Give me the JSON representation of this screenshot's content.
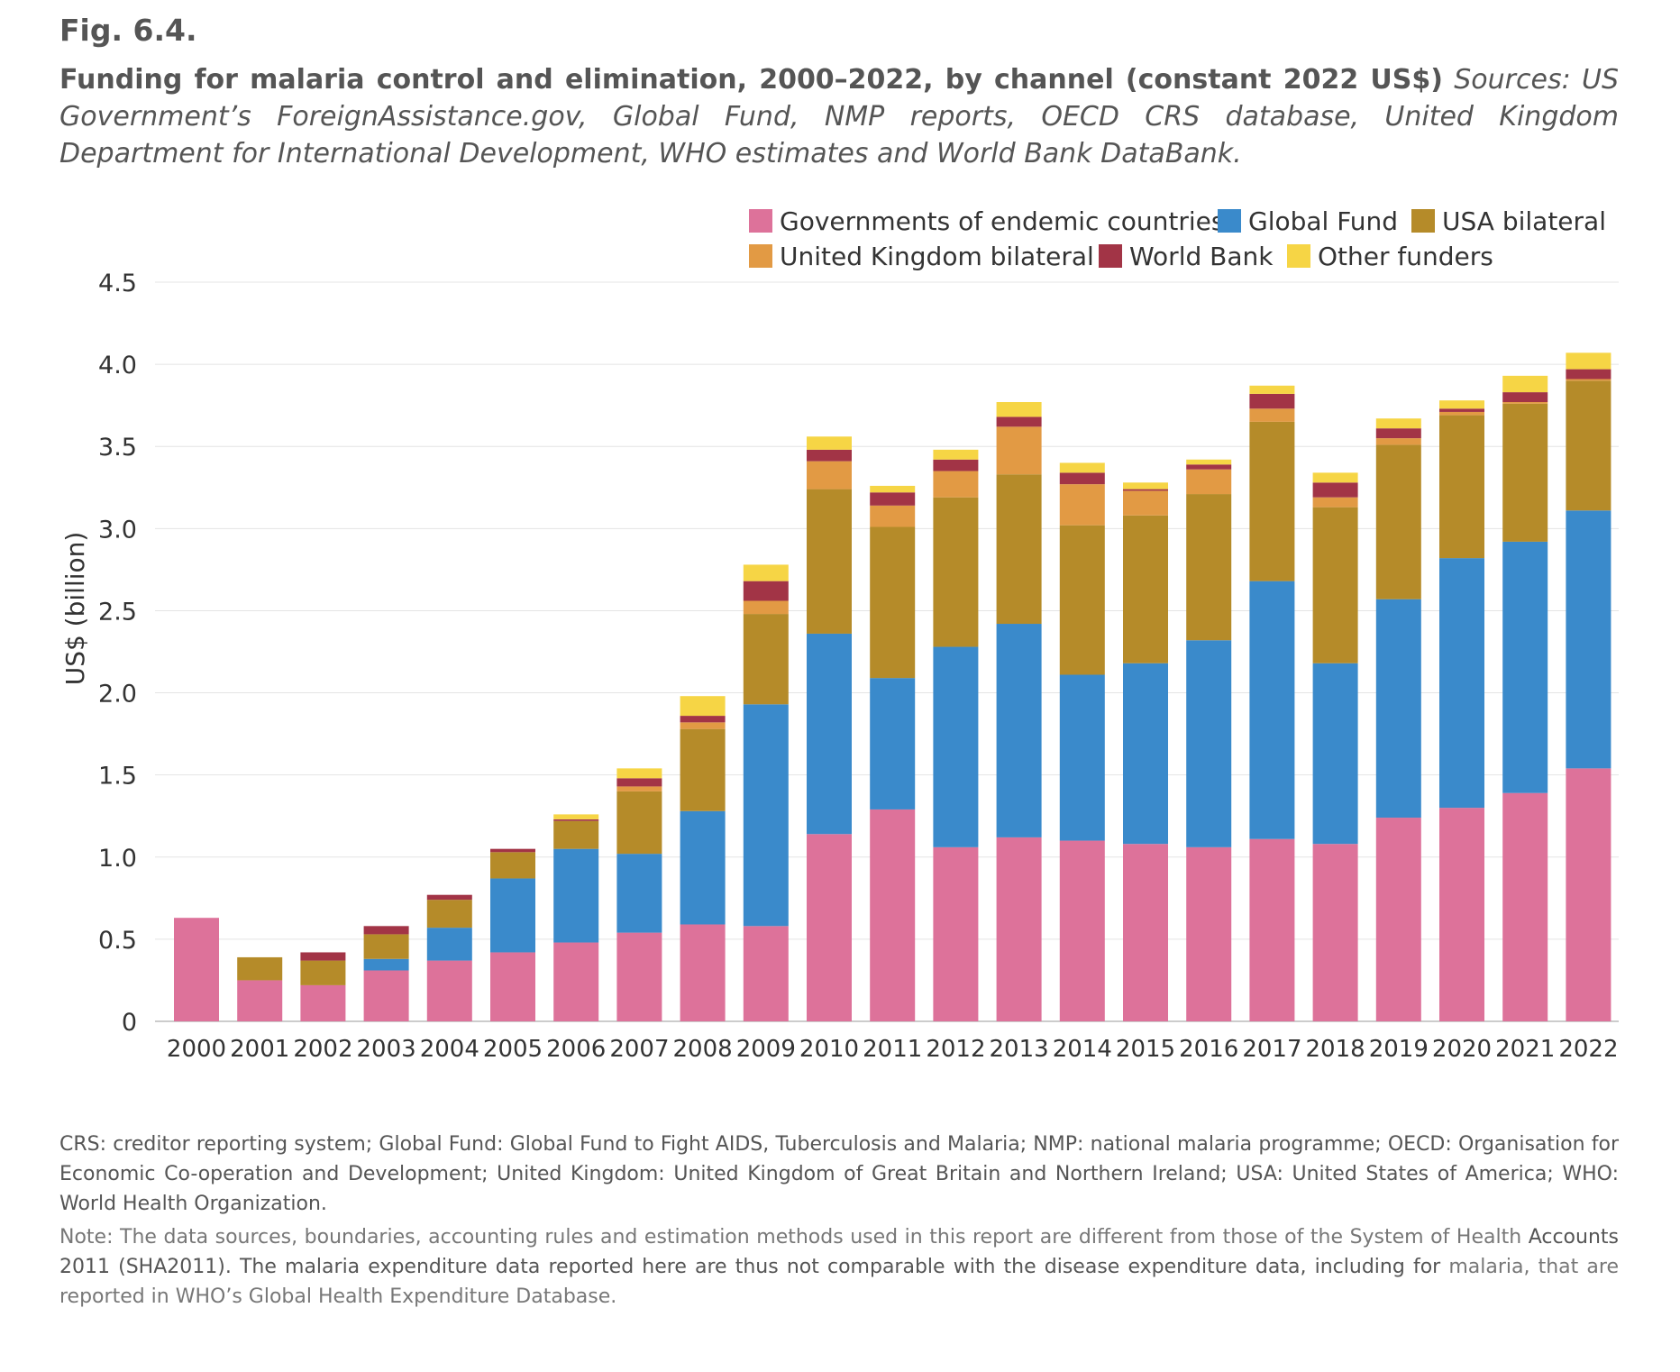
{
  "figure_label": "Fig. 6.4.",
  "caption": {
    "title": "Funding for malaria control and elimination, 2000–2022, by channel (constant 2022 US$)",
    "sources": "Sources: US Government’s ForeignAssistance.gov, Global Fund, NMP reports, OECD CRS database, United Kingdom Department for International Development, WHO estimates and World Bank DataBank."
  },
  "notes": {
    "abbreviations": "CRS: creditor reporting system; Global Fund: Global Fund to Fight AIDS, Tuberculosis and Malaria; NMP: national malaria programme; OECD: Organisation for Economic Co-operation and Development; United Kingdom: United Kingdom of Great Britain and Northern Ireland; USA: United States of America; WHO: World Health Organization.",
    "note_start": "Note: The data sources, boundaries, accounting rules and estimation methods used in this report are different from those of the System of Health ",
    "note_middle": "Accounts 2011 (SHA2011). The malaria expenditure data reported here are thus not comparable with the disease expenditure data, including for",
    "note_end": " malaria, that are reported in WHO’s Global Health Expenditure Database."
  },
  "chart_data": {
    "type": "bar",
    "stacked": true,
    "ylabel": "US$ (billion)",
    "xlabel": "",
    "ylim": [
      0,
      4.5
    ],
    "yticks": [
      {
        "value": 0,
        "label": "0"
      },
      {
        "value": 0.5,
        "label": "0.5"
      },
      {
        "value": 1.0,
        "label": "1.0"
      },
      {
        "value": 1.5,
        "label": "1.5"
      },
      {
        "value": 2.0,
        "label": "2.0"
      },
      {
        "value": 2.5,
        "label": "2.5"
      },
      {
        "value": 3.0,
        "label": "3.0"
      },
      {
        "value": 3.5,
        "label": "3.5"
      },
      {
        "value": 4.0,
        "label": "4.0"
      },
      {
        "value": 4.5,
        "label": "4.5"
      }
    ],
    "grid": true,
    "legend_position": "top-right",
    "categories": [
      "2000",
      "2001",
      "2002",
      "2003",
      "2004",
      "2005",
      "2006",
      "2007",
      "2008",
      "2009",
      "2010",
      "2011",
      "2012",
      "2013",
      "2014",
      "2015",
      "2016",
      "2017",
      "2018",
      "2019",
      "2020",
      "2021",
      "2022"
    ],
    "series": [
      {
        "name": "Governments of endemic countries",
        "color": "#dd729a",
        "values": [
          0.63,
          0.25,
          0.22,
          0.31,
          0.37,
          0.42,
          0.48,
          0.54,
          0.59,
          0.58,
          1.14,
          1.29,
          1.06,
          1.12,
          1.1,
          1.08,
          1.06,
          1.11,
          1.08,
          1.24,
          1.3,
          1.39,
          1.54
        ]
      },
      {
        "name": "Global Fund",
        "color": "#3a8acb",
        "values": [
          0,
          0,
          0,
          0.07,
          0.2,
          0.45,
          0.57,
          0.48,
          0.69,
          1.35,
          1.22,
          0.8,
          1.22,
          1.3,
          1.01,
          1.1,
          1.26,
          1.57,
          1.1,
          1.33,
          1.52,
          1.53,
          1.57
        ]
      },
      {
        "name": "USA bilateral",
        "color": "#b58b29",
        "values": [
          0,
          0.14,
          0.15,
          0.15,
          0.17,
          0.16,
          0.17,
          0.38,
          0.5,
          0.55,
          0.88,
          0.92,
          0.91,
          0.91,
          0.91,
          0.9,
          0.89,
          0.97,
          0.95,
          0.94,
          0.87,
          0.84,
          0.79
        ]
      },
      {
        "name": "United Kingdom bilateral",
        "color": "#e29a44",
        "values": [
          0,
          0,
          0,
          0,
          0,
          0,
          0,
          0.03,
          0.04,
          0.08,
          0.17,
          0.13,
          0.16,
          0.29,
          0.25,
          0.15,
          0.15,
          0.08,
          0.06,
          0.04,
          0.02,
          0.01,
          0.01
        ]
      },
      {
        "name": "World Bank",
        "color": "#a23446",
        "values": [
          0,
          0,
          0.05,
          0.05,
          0.03,
          0.02,
          0.01,
          0.05,
          0.04,
          0.12,
          0.07,
          0.08,
          0.07,
          0.06,
          0.07,
          0.01,
          0.03,
          0.09,
          0.09,
          0.06,
          0.02,
          0.06,
          0.06
        ]
      },
      {
        "name": "Other funders",
        "color": "#f6d545",
        "values": [
          0,
          0,
          0,
          0,
          0,
          0,
          0.03,
          0.06,
          0.12,
          0.1,
          0.08,
          0.04,
          0.06,
          0.09,
          0.06,
          0.04,
          0.03,
          0.05,
          0.06,
          0.06,
          0.05,
          0.1,
          0.1
        ]
      }
    ]
  }
}
